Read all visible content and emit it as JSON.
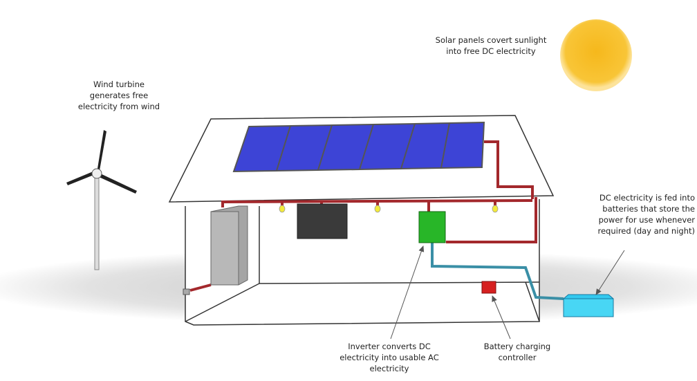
{
  "labels": [
    {
      "lines": [
        "Solar panels covert sunlight",
        "into free DC electricity"
      ]
    },
    {
      "lines": [
        "Wind turbine",
        "generates free",
        "electricity from wind"
      ]
    },
    {
      "lines": [
        "DC electricity is fed into",
        "batteries that store the",
        "power for use whenever",
        "required (day and night)"
      ]
    },
    {
      "lines": [
        "Inverter converts DC",
        "electricity into usable AC",
        "electricity"
      ]
    },
    {
      "lines": [
        "Battery charging",
        "controller"
      ]
    }
  ]
}
